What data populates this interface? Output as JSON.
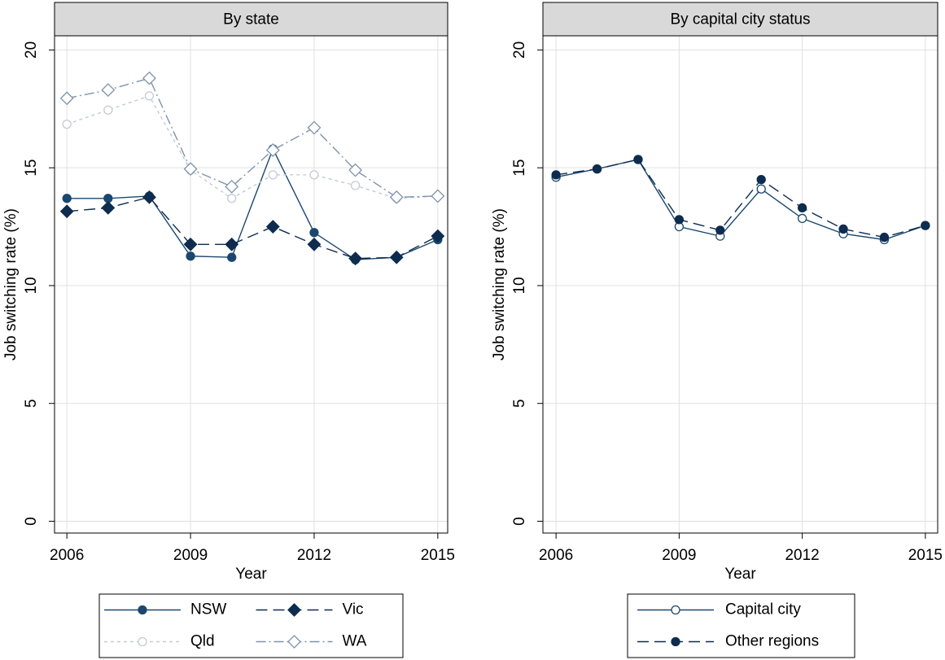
{
  "chart_data": [
    {
      "type": "line",
      "title": "By state",
      "x_label": "Year",
      "y_label": "Job switching rate (%)",
      "x": [
        2006,
        2007,
        2008,
        2009,
        2010,
        2011,
        2012,
        2013,
        2014,
        2015
      ],
      "xlim": [
        2005.7,
        2015.24
      ],
      "xticks": [
        2006,
        2009,
        2012,
        2015
      ],
      "ylim": [
        -0.5,
        20.6
      ],
      "yticks": [
        0,
        5,
        10,
        15,
        20
      ],
      "grid": true,
      "legend_columns": 2,
      "series": [
        {
          "name": "NSW",
          "color": "#1a476f",
          "dash": "solid",
          "marker": "filled-circle",
          "values": [
            13.7,
            13.7,
            13.8,
            11.25,
            11.2,
            15.8,
            12.25,
            11.1,
            11.2,
            11.95
          ]
        },
        {
          "name": "Vic",
          "color": "#0d2c4e",
          "dash": "long-dash",
          "marker": "filled-diamond",
          "values": [
            13.15,
            13.3,
            13.75,
            11.75,
            11.75,
            12.5,
            11.75,
            11.15,
            11.2,
            12.1
          ]
        },
        {
          "name": "Qld",
          "color": "#c3cbd6",
          "dash": "short-dash",
          "marker": "hollow-circle",
          "values": [
            16.85,
            17.45,
            18.05,
            14.9,
            13.7,
            14.7,
            14.7,
            14.25,
            13.7,
            13.8
          ]
        },
        {
          "name": "WA",
          "color": "#7f93aa",
          "dash": "dash-dot",
          "marker": "hollow-diamond",
          "values": [
            17.95,
            18.3,
            18.8,
            14.95,
            14.2,
            15.75,
            16.7,
            14.9,
            13.75,
            13.8
          ]
        }
      ]
    },
    {
      "type": "line",
      "title": "By capital city status",
      "x_label": "Year",
      "y_label": "Job switching rate (%)",
      "x": [
        2006,
        2007,
        2008,
        2009,
        2010,
        2011,
        2012,
        2013,
        2014,
        2015
      ],
      "xlim": [
        2005.68,
        2015.3
      ],
      "xticks": [
        2006,
        2009,
        2012,
        2015
      ],
      "ylim": [
        -0.5,
        20.6
      ],
      "yticks": [
        0,
        5,
        10,
        15,
        20
      ],
      "grid": true,
      "legend_columns": 1,
      "series": [
        {
          "name": "Capital city",
          "color": "#1a476f",
          "dash": "solid",
          "marker": "hollow-circle",
          "values": [
            14.6,
            14.95,
            15.35,
            12.5,
            12.1,
            14.1,
            12.85,
            12.2,
            11.95,
            12.55
          ]
        },
        {
          "name": "Other regions",
          "color": "#0d2c4e",
          "dash": "long-dash",
          "marker": "filled-circle",
          "values": [
            14.7,
            14.95,
            15.35,
            12.8,
            12.35,
            14.5,
            13.3,
            12.4,
            12.05,
            12.55
          ]
        }
      ]
    }
  ]
}
